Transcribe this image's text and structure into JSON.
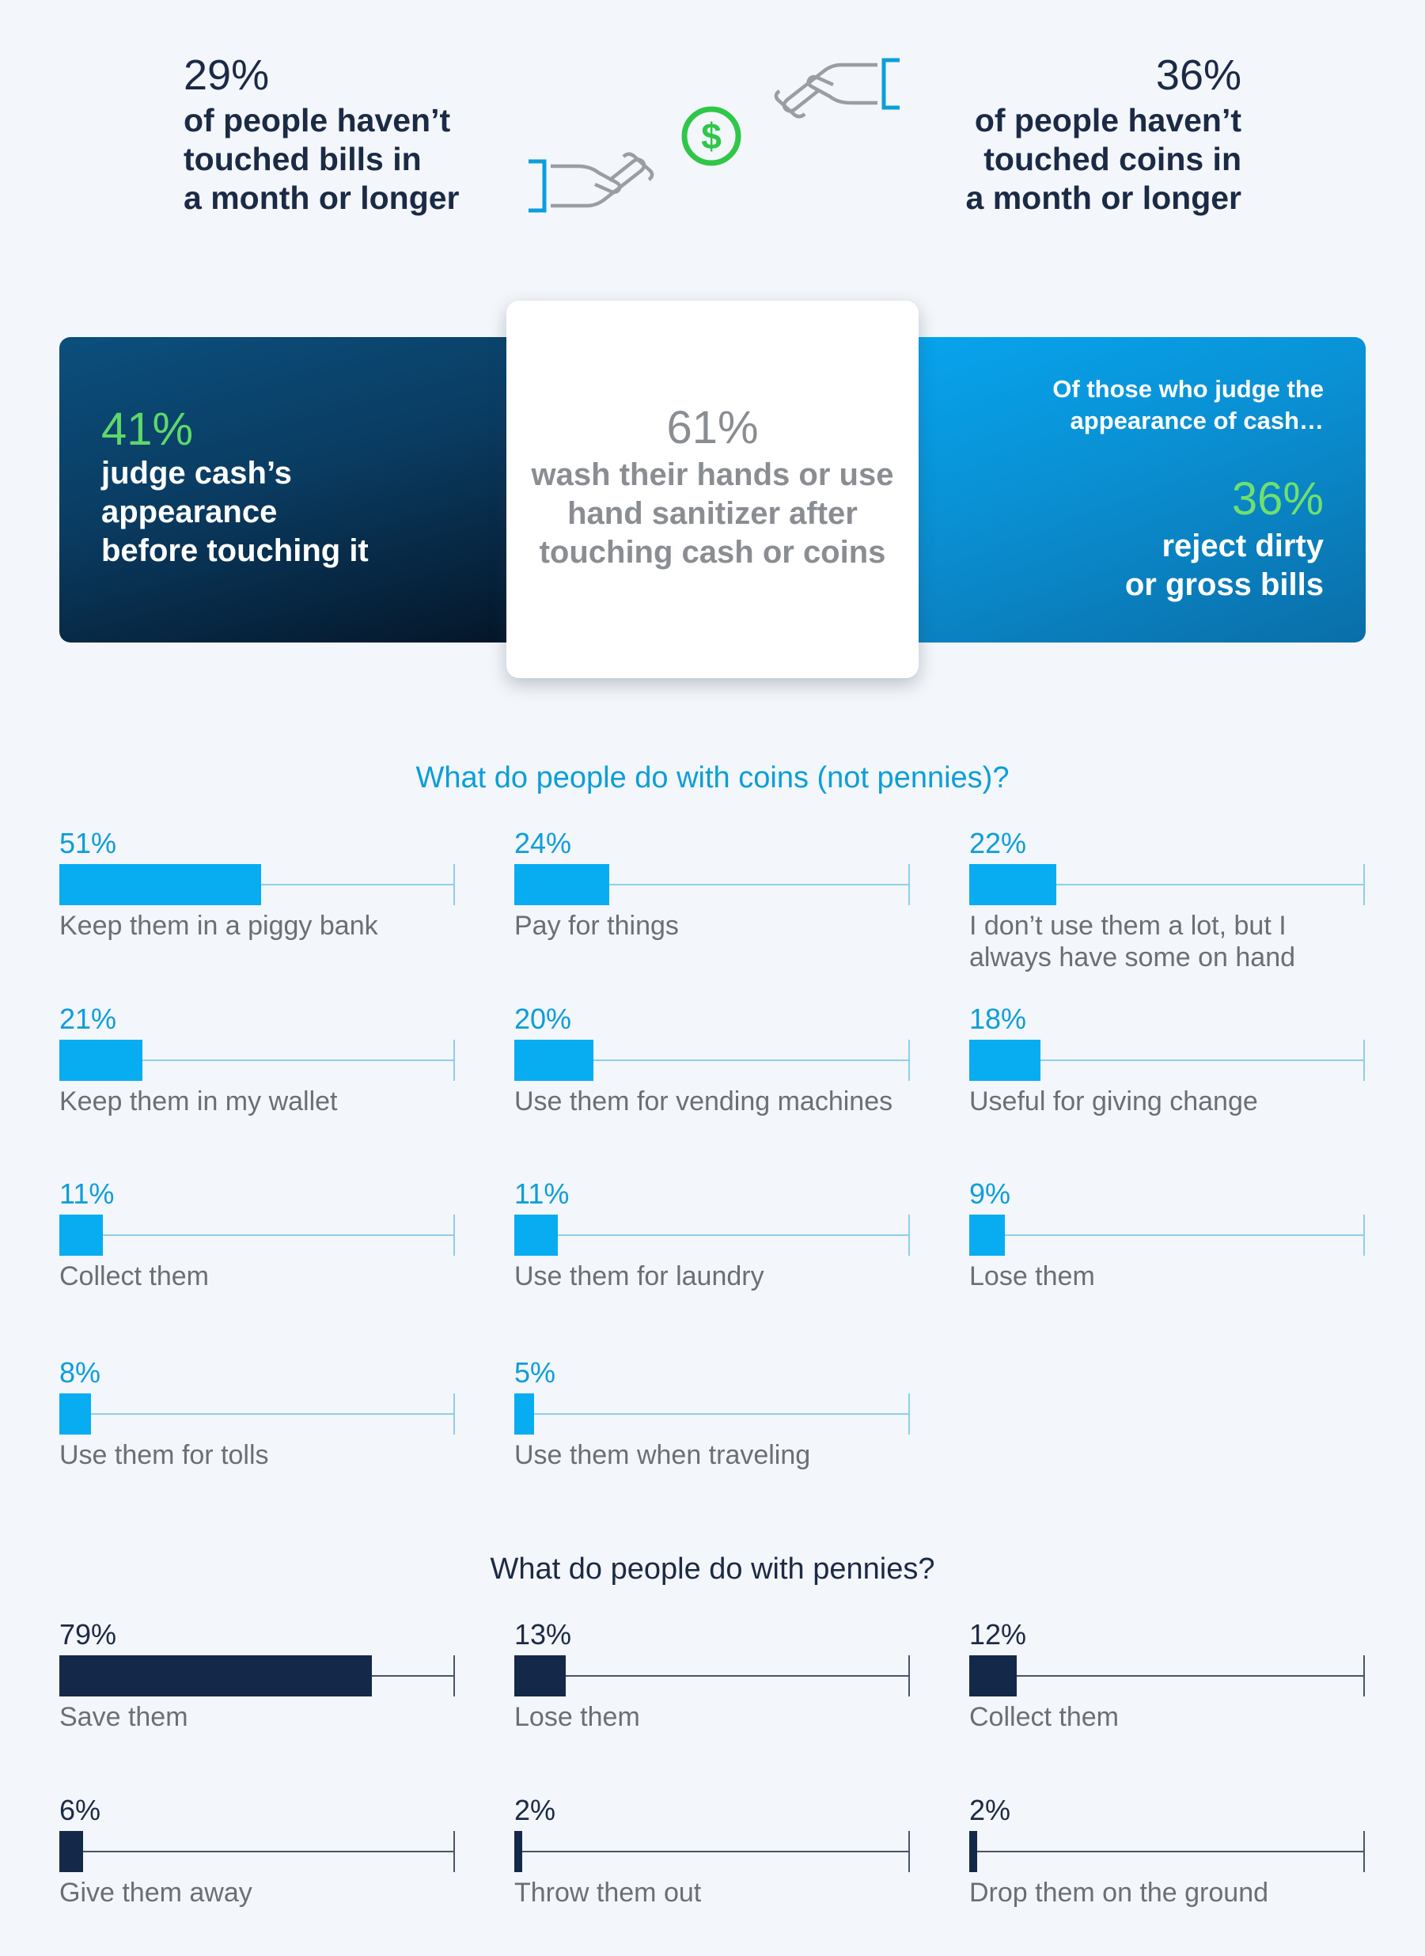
{
  "top_stats": {
    "bills": {
      "pct": "29%",
      "text": "of people haven’t\ntouched bills in\na month or longer"
    },
    "coins": {
      "pct": "36%",
      "text": "of people haven’t\ntouched coins in\na month or longer"
    }
  },
  "icons": {
    "dollar": "$",
    "hand_give": "hand-give-icon",
    "hand_receive": "hand-receive-icon"
  },
  "banner": {
    "left": {
      "pct": "41%",
      "text": "judge cash’s\nappearance\nbefore touching it"
    },
    "center": {
      "pct": "61%",
      "text": "wash their hands or use\nhand sanitizer after\ntouching cash or coins"
    },
    "right": {
      "intro": "Of those who judge the\nappearance of cash…",
      "pct": "36%",
      "text": "reject dirty\nor gross bills"
    }
  },
  "colors": {
    "coin_accent": "#0c9ed9",
    "coin_bar": "#08acf1",
    "penny_bar": "#14294a",
    "green_accent": "#5ed86a",
    "text_dark": "#1b2a45",
    "text_gray": "#6b6f75"
  },
  "chart_data": [
    {
      "type": "bar",
      "title": "What do people do with coins (not pennies)?",
      "categories": [
        "Keep them in a piggy bank",
        "Pay for things",
        "I don’t use them a lot, but I\nalways have some on hand",
        "Keep them in my wallet",
        "Use them for vending machines",
        "Useful for giving change",
        "Collect them",
        "Use them for laundry",
        "Lose them",
        "Use them for tolls",
        "Use them when traveling"
      ],
      "values": [
        51,
        24,
        22,
        21,
        20,
        18,
        11,
        11,
        9,
        8,
        5
      ],
      "value_labels": [
        "51%",
        "24%",
        "22%",
        "21%",
        "20%",
        "18%",
        "11%",
        "11%",
        "9%",
        "8%",
        "5%"
      ],
      "unit": "%",
      "ylim": [
        0,
        100
      ]
    },
    {
      "type": "bar",
      "title": "What do people do with pennies?",
      "categories": [
        "Save them",
        "Lose them",
        "Collect them",
        "Give them away",
        "Throw them out",
        "Drop them on the ground"
      ],
      "values": [
        79,
        13,
        12,
        6,
        2,
        2
      ],
      "value_labels": [
        "79%",
        "13%",
        "12%",
        "6%",
        "2%",
        "2%"
      ],
      "unit": "%",
      "ylim": [
        0,
        100
      ]
    }
  ]
}
